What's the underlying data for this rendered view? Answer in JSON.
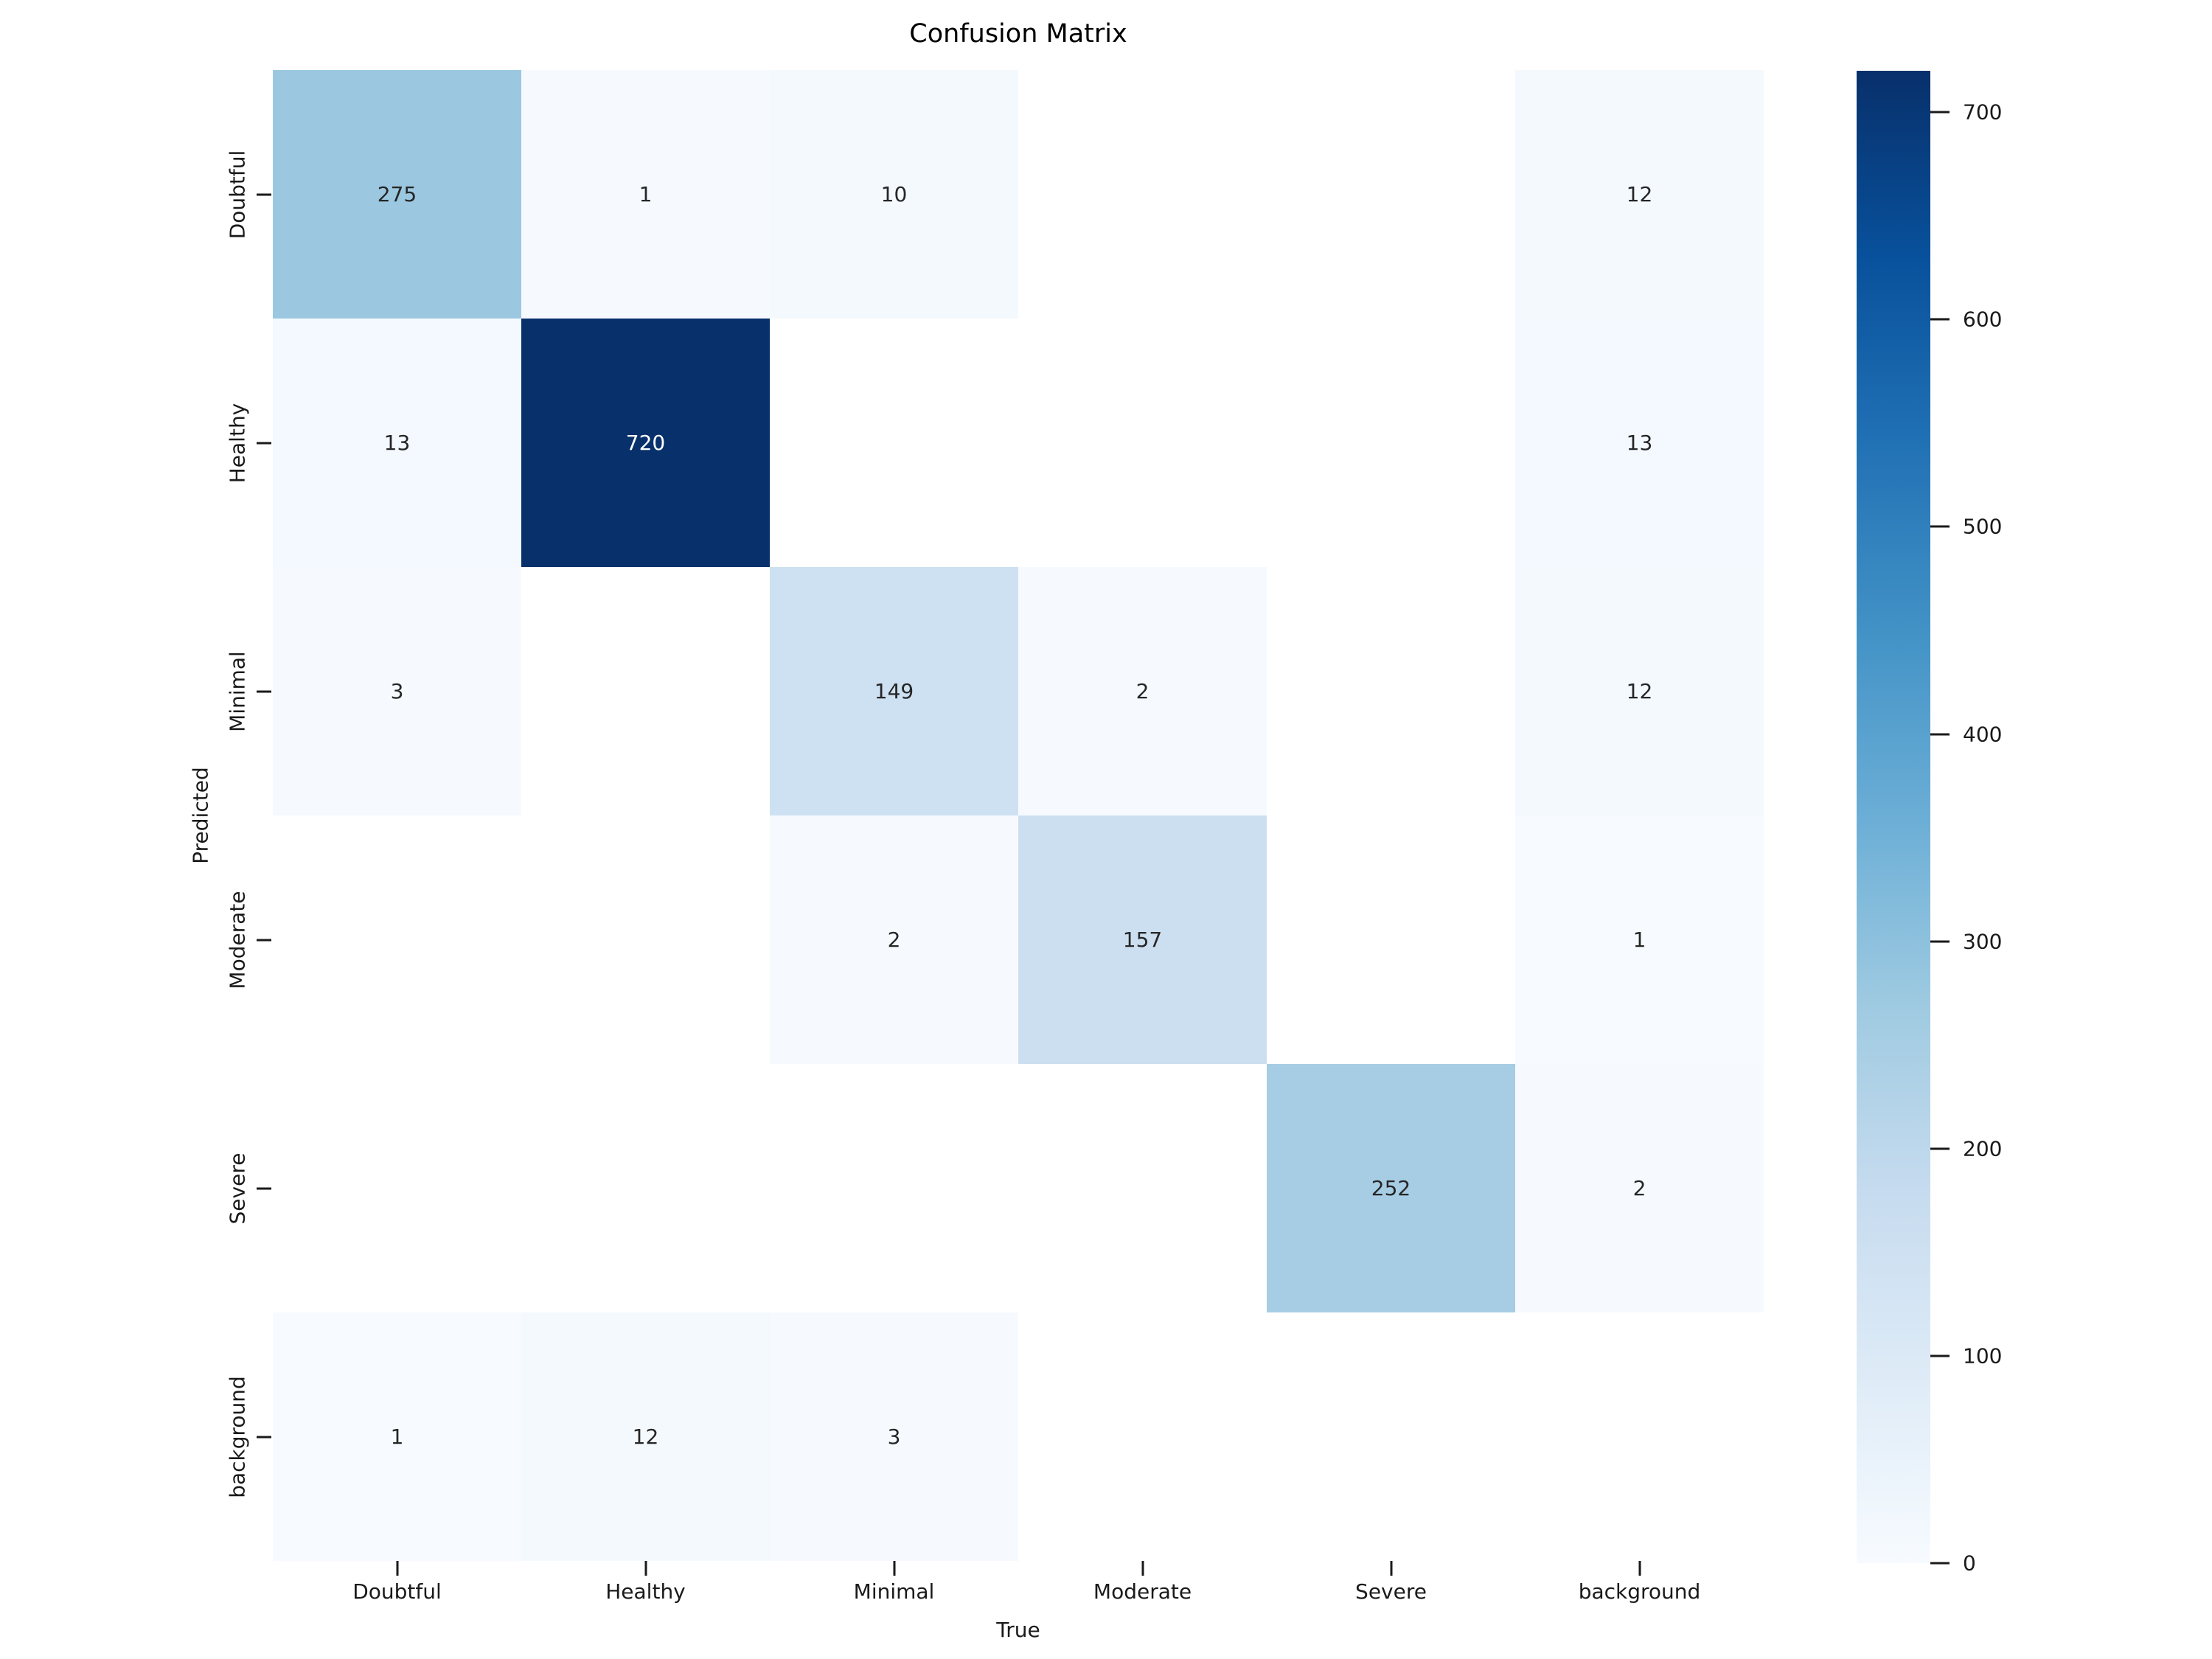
{
  "chart_data": {
    "type": "heatmap",
    "title": "Confusion Matrix",
    "xlabel": "True",
    "ylabel": "Predicted",
    "x_categories": [
      "Doubtful",
      "Healthy",
      "Minimal",
      "Moderate",
      "Severe",
      "background"
    ],
    "y_categories": [
      "Doubtful",
      "Healthy",
      "Minimal",
      "Moderate",
      "Severe",
      "background"
    ],
    "matrix": [
      [
        275,
        1,
        10,
        null,
        null,
        12
      ],
      [
        13,
        720,
        null,
        null,
        null,
        13
      ],
      [
        3,
        null,
        149,
        2,
        null,
        12
      ],
      [
        null,
        null,
        2,
        157,
        null,
        1
      ],
      [
        null,
        null,
        null,
        null,
        252,
        2
      ],
      [
        1,
        12,
        3,
        null,
        null,
        null
      ]
    ],
    "cell_colors": [
      [
        "#9bc8e0",
        "#f6fafe",
        "#f4f9fe",
        "#ffffff",
        "#ffffff",
        "#f4f9fe"
      ],
      [
        "#f3f9fe",
        "#08306b",
        "#ffffff",
        "#ffffff",
        "#ffffff",
        "#f3f9fe"
      ],
      [
        "#f6fafe",
        "#ffffff",
        "#cee1f2",
        "#f6fafe",
        "#ffffff",
        "#f4f9fe"
      ],
      [
        "#ffffff",
        "#ffffff",
        "#f6fafe",
        "#ccdff1",
        "#ffffff",
        "#f7fbff"
      ],
      [
        "#ffffff",
        "#ffffff",
        "#ffffff",
        "#ffffff",
        "#a6cde4",
        "#f6fafe"
      ],
      [
        "#f7fbff",
        "#f4f9fe",
        "#f6fafe",
        "#ffffff",
        "#ffffff",
        "#ffffff"
      ]
    ],
    "annot_color_dark": "#262626",
    "annot_color_light": "#ffffff",
    "colormap": "Blues",
    "vmin": 0,
    "vmax": 720,
    "grid": false,
    "background": "#ffffff",
    "colorbar": {
      "ticks": [
        700,
        600,
        500,
        400,
        300,
        200,
        100,
        0
      ],
      "gradient_stops": [
        {
          "pct": 0,
          "color": "#08306b"
        },
        {
          "pct": 12.5,
          "color": "#08519c"
        },
        {
          "pct": 25,
          "color": "#2171b5"
        },
        {
          "pct": 37.5,
          "color": "#4292c6"
        },
        {
          "pct": 50,
          "color": "#6baed6"
        },
        {
          "pct": 62.5,
          "color": "#9ecae1"
        },
        {
          "pct": 75,
          "color": "#c6dbef"
        },
        {
          "pct": 87.5,
          "color": "#deebf7"
        },
        {
          "pct": 100,
          "color": "#f7fbff"
        }
      ]
    }
  }
}
